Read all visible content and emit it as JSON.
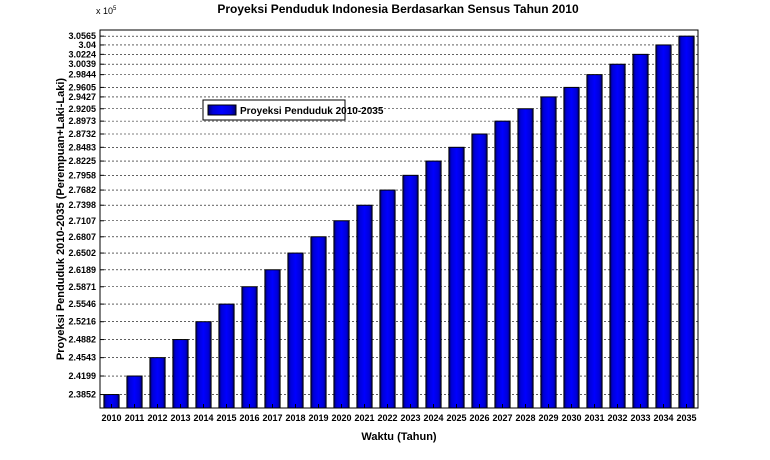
{
  "chart_data": {
    "type": "bar",
    "title": "Proyeksi Penduduk Indonesia Berdasarkan Sensus Tahun 2010",
    "xlabel": "Waktu (Tahun)",
    "ylabel": "Proyeksi Penduduk 2010-2035 (Perempuan+Laki-Laki)",
    "y_multiplier": "x 10",
    "y_multiplier_exp": "5",
    "categories": [
      "2010",
      "2011",
      "2012",
      "2013",
      "2014",
      "2015",
      "2016",
      "2017",
      "2018",
      "2019",
      "2020",
      "2021",
      "2022",
      "2023",
      "2024",
      "2025",
      "2026",
      "2027",
      "2028",
      "2029",
      "2030",
      "2031",
      "2032",
      "2033",
      "2034",
      "2035"
    ],
    "series": [
      {
        "name": "Proyeksi Penduduk 2010-2035",
        "color": "#0000ff",
        "values": [
          2.3852,
          2.4199,
          2.4543,
          2.4882,
          2.5216,
          2.5546,
          2.5871,
          2.6189,
          2.6502,
          2.6807,
          2.7107,
          2.7398,
          2.7682,
          2.7958,
          2.8225,
          2.8483,
          2.8732,
          2.8973,
          2.9205,
          2.9427,
          2.9605,
          2.9844,
          3.0039,
          3.0224,
          3.04,
          3.0565
        ]
      }
    ],
    "yticks": [
      "2.3852",
      "2.4199",
      "2.4543",
      "2.4882",
      "2.5216",
      "2.5546",
      "2.5871",
      "2.6189",
      "2.6502",
      "2.6807",
      "2.7107",
      "2.7398",
      "2.7682",
      "2.7958",
      "2.8225",
      "2.8483",
      "2.8732",
      "2.8973",
      "2.9205",
      "2.9427",
      "2.9605",
      "2.9844",
      "3.0039",
      "3.0224",
      "3.04",
      "3.0565"
    ],
    "ylim": [
      2.36,
      3.068
    ],
    "grid": "horizontal-dashed",
    "legend_position": "top-left"
  }
}
